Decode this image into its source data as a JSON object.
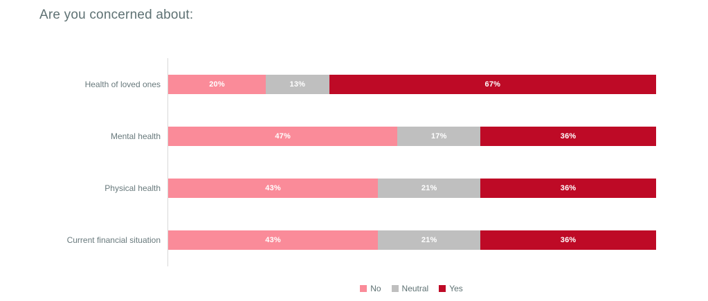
{
  "chart_data": {
    "type": "bar",
    "orientation": "horizontal",
    "stacked": true,
    "title": "Are you concerned about:",
    "categories": [
      "Health of loved ones",
      "Mental health",
      "Physical health",
      "Current financial situation"
    ],
    "series": [
      {
        "name": "No",
        "color": "#FA8B99",
        "values": [
          20,
          47,
          43,
          43
        ]
      },
      {
        "name": "Neutral",
        "color": "#BFBFBF",
        "values": [
          13,
          17,
          21,
          21
        ]
      },
      {
        "name": "Yes",
        "color": "#BE0A26",
        "values": [
          67,
          36,
          36,
          36
        ]
      }
    ],
    "value_label_suffix": "%",
    "xlim": [
      0,
      100
    ],
    "grid": false,
    "legend_position": "bottom-center",
    "axis_line_color": "#D9D9D9",
    "title_color": "#5E7173",
    "label_color": "#68797C",
    "value_label_color": "#FFFFFF"
  }
}
